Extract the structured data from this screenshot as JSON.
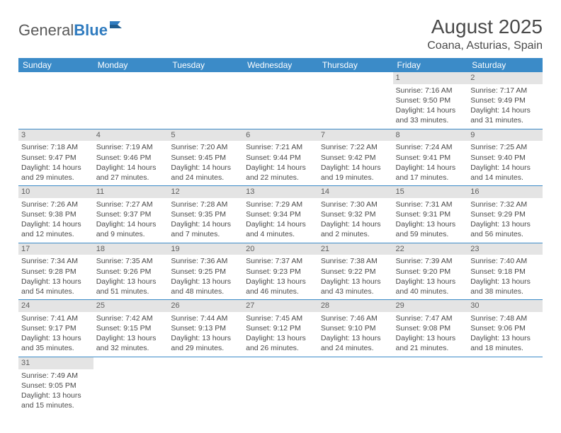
{
  "logo": {
    "part1": "General",
    "part2": "Blue"
  },
  "title": "August 2025",
  "location": "Coana, Asturias, Spain",
  "colors": {
    "header_bg": "#3b8bc8",
    "header_text": "#ffffff",
    "daynum_bg": "#e4e4e4",
    "row_border": "#3b8bc8",
    "text": "#4a4a4a",
    "logo_blue": "#2f7bbf"
  },
  "weekdays": [
    "Sunday",
    "Monday",
    "Tuesday",
    "Wednesday",
    "Thursday",
    "Friday",
    "Saturday"
  ],
  "weeks": [
    [
      null,
      null,
      null,
      null,
      null,
      {
        "n": "1",
        "sr": "Sunrise: 7:16 AM",
        "ss": "Sunset: 9:50 PM",
        "d1": "Daylight: 14 hours",
        "d2": "and 33 minutes."
      },
      {
        "n": "2",
        "sr": "Sunrise: 7:17 AM",
        "ss": "Sunset: 9:49 PM",
        "d1": "Daylight: 14 hours",
        "d2": "and 31 minutes."
      }
    ],
    [
      {
        "n": "3",
        "sr": "Sunrise: 7:18 AM",
        "ss": "Sunset: 9:47 PM",
        "d1": "Daylight: 14 hours",
        "d2": "and 29 minutes."
      },
      {
        "n": "4",
        "sr": "Sunrise: 7:19 AM",
        "ss": "Sunset: 9:46 PM",
        "d1": "Daylight: 14 hours",
        "d2": "and 27 minutes."
      },
      {
        "n": "5",
        "sr": "Sunrise: 7:20 AM",
        "ss": "Sunset: 9:45 PM",
        "d1": "Daylight: 14 hours",
        "d2": "and 24 minutes."
      },
      {
        "n": "6",
        "sr": "Sunrise: 7:21 AM",
        "ss": "Sunset: 9:44 PM",
        "d1": "Daylight: 14 hours",
        "d2": "and 22 minutes."
      },
      {
        "n": "7",
        "sr": "Sunrise: 7:22 AM",
        "ss": "Sunset: 9:42 PM",
        "d1": "Daylight: 14 hours",
        "d2": "and 19 minutes."
      },
      {
        "n": "8",
        "sr": "Sunrise: 7:24 AM",
        "ss": "Sunset: 9:41 PM",
        "d1": "Daylight: 14 hours",
        "d2": "and 17 minutes."
      },
      {
        "n": "9",
        "sr": "Sunrise: 7:25 AM",
        "ss": "Sunset: 9:40 PM",
        "d1": "Daylight: 14 hours",
        "d2": "and 14 minutes."
      }
    ],
    [
      {
        "n": "10",
        "sr": "Sunrise: 7:26 AM",
        "ss": "Sunset: 9:38 PM",
        "d1": "Daylight: 14 hours",
        "d2": "and 12 minutes."
      },
      {
        "n": "11",
        "sr": "Sunrise: 7:27 AM",
        "ss": "Sunset: 9:37 PM",
        "d1": "Daylight: 14 hours",
        "d2": "and 9 minutes."
      },
      {
        "n": "12",
        "sr": "Sunrise: 7:28 AM",
        "ss": "Sunset: 9:35 PM",
        "d1": "Daylight: 14 hours",
        "d2": "and 7 minutes."
      },
      {
        "n": "13",
        "sr": "Sunrise: 7:29 AM",
        "ss": "Sunset: 9:34 PM",
        "d1": "Daylight: 14 hours",
        "d2": "and 4 minutes."
      },
      {
        "n": "14",
        "sr": "Sunrise: 7:30 AM",
        "ss": "Sunset: 9:32 PM",
        "d1": "Daylight: 14 hours",
        "d2": "and 2 minutes."
      },
      {
        "n": "15",
        "sr": "Sunrise: 7:31 AM",
        "ss": "Sunset: 9:31 PM",
        "d1": "Daylight: 13 hours",
        "d2": "and 59 minutes."
      },
      {
        "n": "16",
        "sr": "Sunrise: 7:32 AM",
        "ss": "Sunset: 9:29 PM",
        "d1": "Daylight: 13 hours",
        "d2": "and 56 minutes."
      }
    ],
    [
      {
        "n": "17",
        "sr": "Sunrise: 7:34 AM",
        "ss": "Sunset: 9:28 PM",
        "d1": "Daylight: 13 hours",
        "d2": "and 54 minutes."
      },
      {
        "n": "18",
        "sr": "Sunrise: 7:35 AM",
        "ss": "Sunset: 9:26 PM",
        "d1": "Daylight: 13 hours",
        "d2": "and 51 minutes."
      },
      {
        "n": "19",
        "sr": "Sunrise: 7:36 AM",
        "ss": "Sunset: 9:25 PM",
        "d1": "Daylight: 13 hours",
        "d2": "and 48 minutes."
      },
      {
        "n": "20",
        "sr": "Sunrise: 7:37 AM",
        "ss": "Sunset: 9:23 PM",
        "d1": "Daylight: 13 hours",
        "d2": "and 46 minutes."
      },
      {
        "n": "21",
        "sr": "Sunrise: 7:38 AM",
        "ss": "Sunset: 9:22 PM",
        "d1": "Daylight: 13 hours",
        "d2": "and 43 minutes."
      },
      {
        "n": "22",
        "sr": "Sunrise: 7:39 AM",
        "ss": "Sunset: 9:20 PM",
        "d1": "Daylight: 13 hours",
        "d2": "and 40 minutes."
      },
      {
        "n": "23",
        "sr": "Sunrise: 7:40 AM",
        "ss": "Sunset: 9:18 PM",
        "d1": "Daylight: 13 hours",
        "d2": "and 38 minutes."
      }
    ],
    [
      {
        "n": "24",
        "sr": "Sunrise: 7:41 AM",
        "ss": "Sunset: 9:17 PM",
        "d1": "Daylight: 13 hours",
        "d2": "and 35 minutes."
      },
      {
        "n": "25",
        "sr": "Sunrise: 7:42 AM",
        "ss": "Sunset: 9:15 PM",
        "d1": "Daylight: 13 hours",
        "d2": "and 32 minutes."
      },
      {
        "n": "26",
        "sr": "Sunrise: 7:44 AM",
        "ss": "Sunset: 9:13 PM",
        "d1": "Daylight: 13 hours",
        "d2": "and 29 minutes."
      },
      {
        "n": "27",
        "sr": "Sunrise: 7:45 AM",
        "ss": "Sunset: 9:12 PM",
        "d1": "Daylight: 13 hours",
        "d2": "and 26 minutes."
      },
      {
        "n": "28",
        "sr": "Sunrise: 7:46 AM",
        "ss": "Sunset: 9:10 PM",
        "d1": "Daylight: 13 hours",
        "d2": "and 24 minutes."
      },
      {
        "n": "29",
        "sr": "Sunrise: 7:47 AM",
        "ss": "Sunset: 9:08 PM",
        "d1": "Daylight: 13 hours",
        "d2": "and 21 minutes."
      },
      {
        "n": "30",
        "sr": "Sunrise: 7:48 AM",
        "ss": "Sunset: 9:06 PM",
        "d1": "Daylight: 13 hours",
        "d2": "and 18 minutes."
      }
    ],
    [
      {
        "n": "31",
        "sr": "Sunrise: 7:49 AM",
        "ss": "Sunset: 9:05 PM",
        "d1": "Daylight: 13 hours",
        "d2": "and 15 minutes."
      },
      null,
      null,
      null,
      null,
      null,
      null
    ]
  ]
}
